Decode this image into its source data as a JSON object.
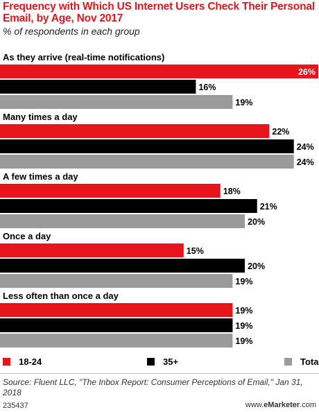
{
  "chart_data": {
    "type": "bar",
    "orientation": "horizontal",
    "title": "Frequency with Which US Internet Users Check Their Personal Email, by Age, Nov 2017",
    "subtitle": "% of respondents in each group",
    "categories": [
      "As they arrive (real-time notifications)",
      "Many times a day",
      "A few times a day",
      "Once a day",
      "Less often than once a day"
    ],
    "series": [
      {
        "name": "18-24",
        "color": "#e8141c",
        "values": [
          26,
          22,
          18,
          15,
          19
        ]
      },
      {
        "name": "35+",
        "color": "#000000",
        "values": [
          16,
          24,
          21,
          20,
          19
        ]
      },
      {
        "name": "Total",
        "color": "#9a9a9a",
        "values": [
          19,
          24,
          20,
          19,
          19
        ]
      }
    ],
    "value_suffix": "%",
    "xlim": [
      0,
      26
    ],
    "grid": false,
    "legend_position": "bottom"
  },
  "source": "Source: Fluent LLC, \"The Inbox Report: Consumer Perceptions of Email,\" Jan 31, 2018",
  "footer": {
    "id": "235437",
    "brand_prefix": "www.",
    "brand_name": "eMarketer",
    "brand_suffix": ".com"
  }
}
